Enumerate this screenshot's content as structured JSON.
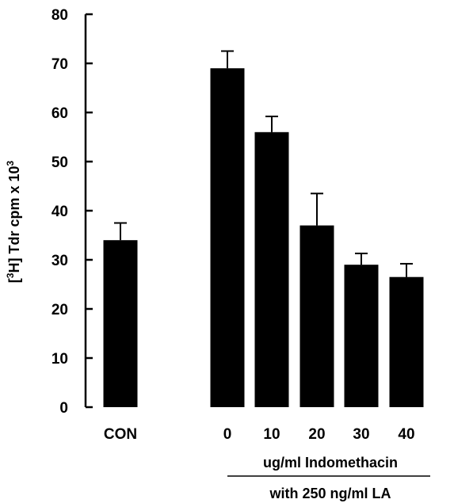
{
  "chart_data": {
    "type": "bar",
    "categories": [
      "CON",
      "0",
      "10",
      "20",
      "30",
      "40"
    ],
    "values": [
      34,
      69,
      56,
      37,
      29,
      26.5
    ],
    "errors": [
      3.5,
      3.5,
      3.2,
      6.5,
      2.3,
      2.7
    ],
    "ylabel_prefix": "[",
    "ylabel_sup1": "3",
    "ylabel_mid": "H] Tdr cpm x 10",
    "ylabel_sup2": "3",
    "ylim": [
      0,
      80
    ],
    "yticks": [
      0,
      10,
      20,
      30,
      40,
      50,
      60,
      70,
      80
    ],
    "group_label_1": "ug/ml Indomethacin",
    "group_label_2": "with 250 ng/ml LA",
    "bar_color": "#000000",
    "grid": false,
    "legend": "none"
  }
}
